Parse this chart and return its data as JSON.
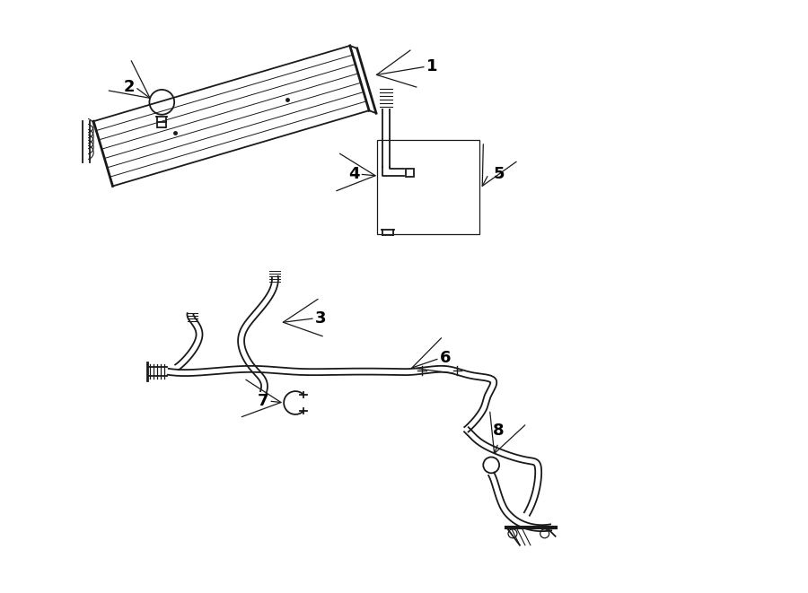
{
  "bg_color": "#ffffff",
  "line_color": "#1a1a1a",
  "label_color": "#000000",
  "fig_width": 9.0,
  "fig_height": 6.61,
  "dpi": 100
}
